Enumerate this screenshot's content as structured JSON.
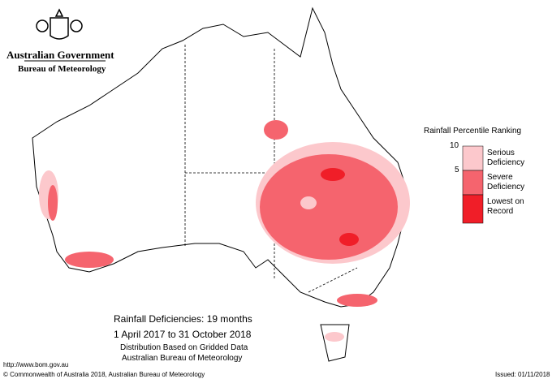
{
  "header": {
    "government": "Australian Government",
    "bureau": "Bureau of Meteorology"
  },
  "legend": {
    "title": "Rainfall Percentile Ranking",
    "thresholds": [
      10,
      5
    ],
    "classes": [
      {
        "label": "Serious Deficiency",
        "color": "#fcc8cc"
      },
      {
        "label": "Severe Deficiency",
        "color": "#f5646e"
      },
      {
        "label": "Lowest on Record",
        "color": "#f01e28"
      }
    ]
  },
  "caption": {
    "title": "Rainfall Deficiencies: 19 months",
    "period": "1 April 2017 to 31 October 2018",
    "line1": "Distribution Based on Gridded Data",
    "line2": "Australian Bureau of Meteorology"
  },
  "footer": {
    "url": "http://www.bom.gov.au",
    "copyright": "© Commonwealth of Australia 2018, Australian Bureau of Meteorology",
    "issued": "Issued: 01/11/2018"
  }
}
